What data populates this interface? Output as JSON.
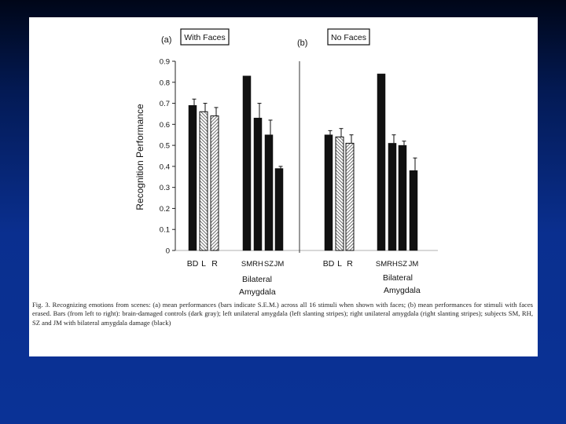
{
  "figure": {
    "panel_a_letter": "(a)",
    "panel_a_title": "With Faces",
    "panel_b_letter": "(b)",
    "panel_b_title": "No Faces",
    "caption": "Fig. 3. Recognizing emotions from scenes: (a) mean performances (bars indicate S.E.M.) across all 16 stimuli when shown with faces; (b) mean performances for stimuli with faces erased. Bars (from left to right): brain-damaged controls (dark gray); left unilateral amygdala (left slanting stripes); right unilateral amygdala (right slanting stripes); subjects SM, RH, SZ and JM with bilateral amygdala damage (black)"
  },
  "colors": {
    "black_bar": "#111111",
    "stripe": "#333333",
    "background_top": "#000618",
    "background_bottom": "#0a3296"
  },
  "chart_data": {
    "type": "bar",
    "ylabel": "Recognition Performance",
    "ylim": [
      0,
      0.9
    ],
    "yticks": [
      "0",
      "0.1",
      "0.2",
      "0.3",
      "0.4",
      "0.5",
      "0.6",
      "0.7",
      "0.8",
      "0.9"
    ],
    "group_label_line1": "Bilateral",
    "group_label_line2": "Amygdala",
    "panels": [
      {
        "title": "With Faces",
        "bars": [
          {
            "label": "BD",
            "value": 0.69,
            "err": 0.03,
            "fill": "dark"
          },
          {
            "label": "L",
            "value": 0.66,
            "err": 0.04,
            "fill": "left-stripes"
          },
          {
            "label": "R",
            "value": 0.64,
            "err": 0.04,
            "fill": "right-stripes"
          },
          {
            "label": "SM",
            "value": 0.83,
            "err": 0,
            "fill": "black"
          },
          {
            "label": "RH",
            "value": 0.63,
            "err": 0.07,
            "fill": "black"
          },
          {
            "label": "SZ",
            "value": 0.55,
            "err": 0.07,
            "fill": "black"
          },
          {
            "label": "JM",
            "value": 0.39,
            "err": 0.01,
            "fill": "black"
          }
        ]
      },
      {
        "title": "No Faces",
        "bars": [
          {
            "label": "BD",
            "value": 0.55,
            "err": 0.02,
            "fill": "dark"
          },
          {
            "label": "L",
            "value": 0.54,
            "err": 0.04,
            "fill": "left-stripes"
          },
          {
            "label": "R",
            "value": 0.51,
            "err": 0.04,
            "fill": "right-stripes"
          },
          {
            "label": "SM",
            "value": 0.84,
            "err": 0,
            "fill": "black"
          },
          {
            "label": "RH",
            "value": 0.51,
            "err": 0.04,
            "fill": "black"
          },
          {
            "label": "SZ",
            "value": 0.5,
            "err": 0.02,
            "fill": "black"
          },
          {
            "label": "JM",
            "value": 0.38,
            "err": 0.06,
            "fill": "black"
          }
        ]
      }
    ]
  }
}
